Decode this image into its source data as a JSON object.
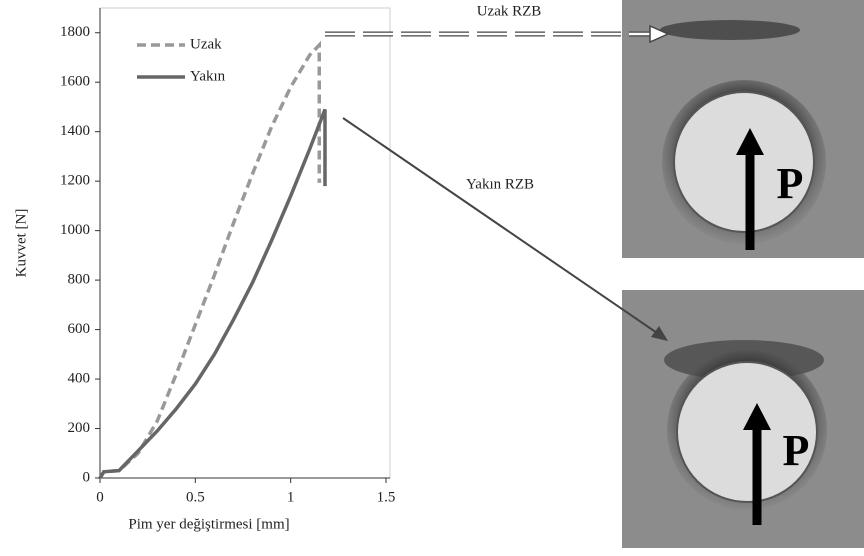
{
  "chart_data": {
    "type": "line",
    "xlabel": "Pim yer değiştirmesi  [mm]",
    "ylabel": "Kuvvet [N]",
    "xlim": [
      0,
      1.5
    ],
    "xticks": [
      0,
      0.5,
      1,
      1.5
    ],
    "ylim": [
      0,
      1900
    ],
    "yticks": [
      0,
      200,
      400,
      600,
      800,
      1000,
      1200,
      1400,
      1600,
      1800
    ],
    "legend": "top-left",
    "series": [
      {
        "name": "Uzak",
        "color": "#999999",
        "dash": true,
        "x": [
          0,
          0.02,
          0.1,
          0.2,
          0.3,
          0.4,
          0.5,
          0.6,
          0.7,
          0.8,
          0.9,
          1.0,
          1.1,
          1.15,
          1.15,
          1.16
        ],
        "values": [
          0,
          25,
          30,
          100,
          230,
          420,
          620,
          820,
          1030,
          1230,
          1420,
          1580,
          1710,
          1750,
          1200,
          1200
        ]
      },
      {
        "name": "Yakın",
        "color": "#666666",
        "dash": false,
        "x": [
          0,
          0.02,
          0.1,
          0.2,
          0.3,
          0.4,
          0.5,
          0.6,
          0.7,
          0.8,
          0.9,
          1.0,
          1.1,
          1.17,
          1.18,
          1.18
        ],
        "values": [
          0,
          25,
          30,
          110,
          190,
          280,
          380,
          500,
          640,
          790,
          960,
          1140,
          1330,
          1470,
          1490,
          1180
        ]
      }
    ],
    "annotations": [
      "Uzak RZB",
      "Yakın RZB"
    ]
  },
  "photos": [
    {
      "label": "P"
    },
    {
      "label": "P"
    }
  ]
}
